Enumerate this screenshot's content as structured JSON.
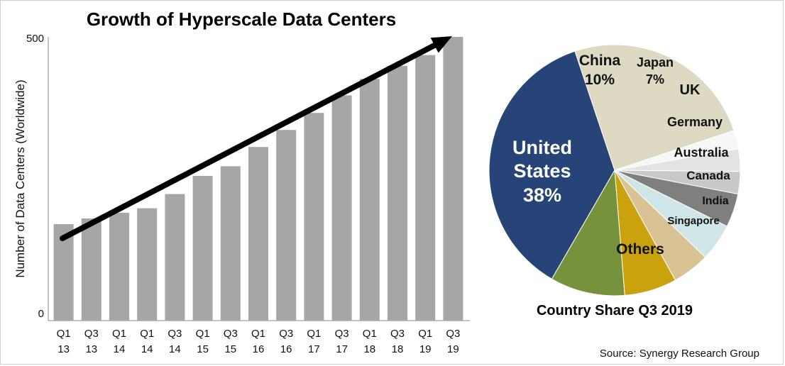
{
  "bar_title": "Growth of Hyperscale Data Centers",
  "pie_title": "Country Share Q3 2019",
  "source": "Source: Synergy Research Group",
  "colors": {
    "bar": "#a6a6a6",
    "arrow": "#000000"
  },
  "chart_data": [
    {
      "type": "bar",
      "title": "Growth of Hyperscale Data Centers",
      "ylabel": "Number of Data Centers (Worldwide)",
      "ylim": [
        0,
        500
      ],
      "yticks": [
        "0",
        "500"
      ],
      "categories": [
        [
          "Q1",
          "13"
        ],
        [
          "Q3",
          "13"
        ],
        [
          "Q1",
          "14"
        ],
        [
          "Q1",
          "14"
        ],
        [
          "Q3",
          "14"
        ],
        [
          "Q1",
          "15"
        ],
        [
          "Q3",
          "15"
        ],
        [
          "Q1",
          "16"
        ],
        [
          "Q3",
          "16"
        ],
        [
          "Q1",
          "17"
        ],
        [
          "Q3",
          "17"
        ],
        [
          "Q1",
          "18"
        ],
        [
          "Q3",
          "18"
        ],
        [
          "Q1",
          "19"
        ],
        [
          "Q3",
          "19"
        ]
      ],
      "values": [
        170,
        180,
        190,
        198,
        223,
        255,
        272,
        306,
        336,
        366,
        397,
        426,
        449,
        468,
        500
      ],
      "trend_arrow": true
    },
    {
      "type": "pie",
      "title": "Country Share Q3 2019",
      "slices": [
        {
          "label": "United States",
          "pct_text": "38%",
          "value": 38,
          "color": "#264478",
          "text_color": "#ffffff"
        },
        {
          "label": "Others",
          "pct_text": "",
          "value": 26,
          "color": "#ddd9c3",
          "text_color": "#111111"
        },
        {
          "label": "Singapore",
          "pct_text": "",
          "value": 2.5,
          "color": "#f7f7f7",
          "text_color": "#111111"
        },
        {
          "label": "India",
          "pct_text": "",
          "value": 3,
          "color": "#e3e3e3",
          "text_color": "#111111"
        },
        {
          "label": "Canada",
          "pct_text": "",
          "value": 3,
          "color": "#c9c9c9",
          "text_color": "#111111"
        },
        {
          "label": "Australia",
          "pct_text": "",
          "value": 4.5,
          "color": "#7f7f7f",
          "text_color": "#111111"
        },
        {
          "label": "Germany",
          "pct_text": "",
          "value": 5,
          "color": "#cfe6e8",
          "text_color": "#111111"
        },
        {
          "label": "UK",
          "pct_text": "",
          "value": 5,
          "color": "#d9c293",
          "text_color": "#111111"
        },
        {
          "label": "Japan",
          "pct_text": "7%",
          "value": 7,
          "color": "#c9a20e",
          "text_color": "#111111"
        },
        {
          "label": "China",
          "pct_text": "10%",
          "value": 10,
          "color": "#77923c",
          "text_color": "#111111"
        }
      ]
    }
  ]
}
